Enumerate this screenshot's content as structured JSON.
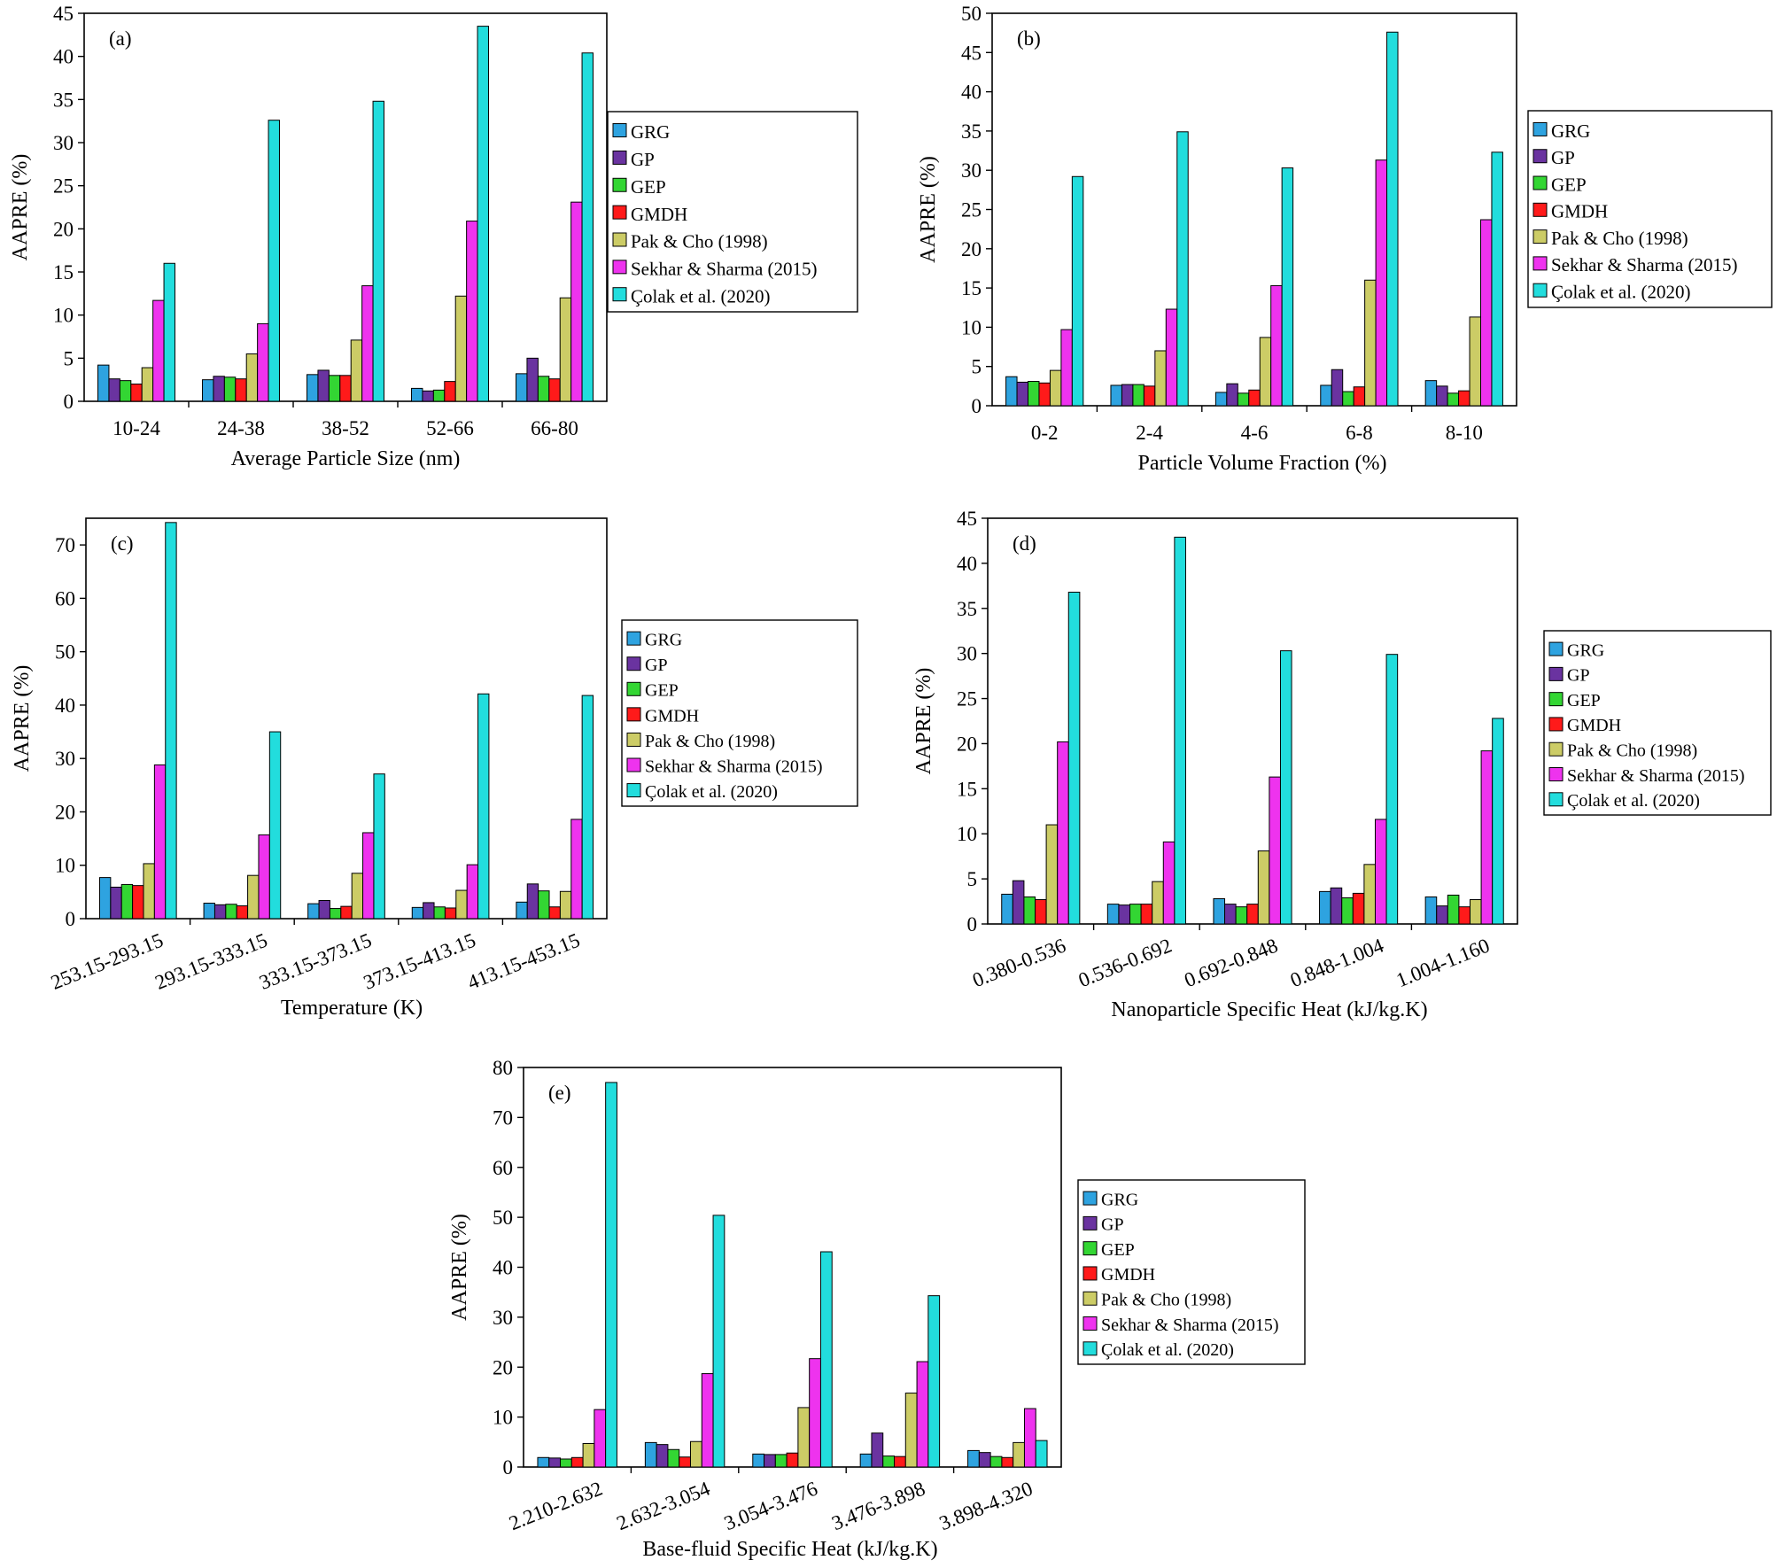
{
  "legend_entries": [
    "GRG",
    "GP",
    "GEP",
    "GMDH",
    "Pak & Cho (1998)",
    "Sekhar & Sharma (2015)",
    "Çolak et al. (2020)"
  ],
  "colors": {
    "series": [
      "#2ea3e0",
      "#6a33a0",
      "#33d633",
      "#ff1a1a",
      "#cccc66",
      "#ee33ee",
      "#22dddd"
    ],
    "axis": "#000000",
    "bar_stroke": "#000000"
  },
  "chart_data": [
    {
      "type": "bar",
      "panel_label": "(a)",
      "title": "",
      "xlabel": "Average Particle Size (nm)",
      "ylabel": "AAPRE (%)",
      "ylim": [
        0,
        45
      ],
      "ytick_step": 5,
      "categories": [
        "10-24",
        "24-38",
        "38-52",
        "52-66",
        "66-80"
      ],
      "series": [
        {
          "name": "GRG",
          "values": [
            4.2,
            2.5,
            3.1,
            1.5,
            3.2
          ]
        },
        {
          "name": "GP",
          "values": [
            2.6,
            2.9,
            3.6,
            1.2,
            5.0
          ]
        },
        {
          "name": "GEP",
          "values": [
            2.4,
            2.8,
            3.0,
            1.3,
            2.9
          ]
        },
        {
          "name": "GMDH",
          "values": [
            2.0,
            2.6,
            3.0,
            2.3,
            2.6
          ]
        },
        {
          "name": "Pak & Cho (1998)",
          "values": [
            3.9,
            5.5,
            7.1,
            12.2,
            12.0
          ]
        },
        {
          "name": "Sekhar & Sharma (2015)",
          "values": [
            11.7,
            9.0,
            13.4,
            20.9,
            23.1
          ]
        },
        {
          "name": "Çolak et al. (2020)",
          "values": [
            16.0,
            32.6,
            34.8,
            43.5,
            40.4
          ]
        }
      ]
    },
    {
      "type": "bar",
      "panel_label": "(b)",
      "title": "",
      "xlabel": "Particle Volume Fraction (%)",
      "ylabel": "AAPRE (%)",
      "ylim": [
        0,
        50
      ],
      "ytick_step": 5,
      "categories": [
        "0-2",
        "2-4",
        "4-6",
        "6-8",
        "8-10"
      ],
      "series": [
        {
          "name": "GRG",
          "values": [
            3.7,
            2.6,
            1.7,
            2.6,
            3.2
          ]
        },
        {
          "name": "GP",
          "values": [
            3.0,
            2.7,
            2.8,
            4.6,
            2.5
          ]
        },
        {
          "name": "GEP",
          "values": [
            3.1,
            2.7,
            1.6,
            1.8,
            1.6
          ]
        },
        {
          "name": "GMDH",
          "values": [
            2.9,
            2.5,
            2.0,
            2.4,
            1.9
          ]
        },
        {
          "name": "Pak & Cho (1998)",
          "values": [
            4.5,
            7.0,
            8.7,
            16.0,
            11.3
          ]
        },
        {
          "name": "Sekhar & Sharma (2015)",
          "values": [
            9.7,
            12.3,
            15.3,
            31.3,
            23.7
          ]
        },
        {
          "name": "Çolak et al. (2020)",
          "values": [
            29.2,
            34.9,
            30.3,
            47.6,
            32.3
          ]
        }
      ]
    },
    {
      "type": "bar",
      "panel_label": "(c)",
      "title": "",
      "xlabel": "Temperature (K)",
      "ylabel": "AAPRE (%)",
      "ylim": [
        0,
        75
      ],
      "ytick_step": 10,
      "categories": [
        "253.15-293.15",
        "293.15-333.15",
        "333.15-373.15",
        "373.15-413.15",
        "413.15-453.15"
      ],
      "series": [
        {
          "name": "GRG",
          "values": [
            7.7,
            2.9,
            2.8,
            2.1,
            3.1
          ]
        },
        {
          "name": "GP",
          "values": [
            5.9,
            2.6,
            3.4,
            3.0,
            6.5
          ]
        },
        {
          "name": "GEP",
          "values": [
            6.4,
            2.7,
            1.9,
            2.2,
            5.2
          ]
        },
        {
          "name": "GMDH",
          "values": [
            6.2,
            2.4,
            2.3,
            2.0,
            2.2
          ]
        },
        {
          "name": "Pak & Cho (1998)",
          "values": [
            10.3,
            8.1,
            8.5,
            5.3,
            5.1
          ]
        },
        {
          "name": "Sekhar & Sharma (2015)",
          "values": [
            28.8,
            15.7,
            16.1,
            10.1,
            18.6
          ]
        },
        {
          "name": "Çolak et al. (2020)",
          "values": [
            74.2,
            35.0,
            27.1,
            42.1,
            41.8
          ]
        }
      ]
    },
    {
      "type": "bar",
      "panel_label": "(d)",
      "title": "",
      "xlabel": "Nanoparticle Specific Heat (kJ/kg.K)",
      "ylabel": "AAPRE (%)",
      "ylim": [
        0,
        45
      ],
      "ytick_step": 5,
      "categories": [
        "0.380-0.536",
        "0.536-0.692",
        "0.692-0.848",
        "0.848-1.004",
        "1.004-1.160"
      ],
      "series": [
        {
          "name": "GRG",
          "values": [
            3.3,
            2.2,
            2.8,
            3.6,
            3.0
          ]
        },
        {
          "name": "GP",
          "values": [
            4.8,
            2.1,
            2.2,
            4.0,
            2.0
          ]
        },
        {
          "name": "GEP",
          "values": [
            3.0,
            2.2,
            1.9,
            2.9,
            3.2
          ]
        },
        {
          "name": "GMDH",
          "values": [
            2.7,
            2.2,
            2.2,
            3.4,
            1.9
          ]
        },
        {
          "name": "Pak & Cho (1998)",
          "values": [
            11.0,
            4.7,
            8.1,
            6.6,
            2.7
          ]
        },
        {
          "name": "Sekhar & Sharma (2015)",
          "values": [
            20.2,
            9.1,
            16.3,
            11.6,
            19.2
          ]
        },
        {
          "name": "Çolak et al. (2020)",
          "values": [
            36.8,
            42.9,
            30.3,
            29.9,
            22.8
          ]
        }
      ]
    },
    {
      "type": "bar",
      "panel_label": "(e)",
      "title": "",
      "xlabel": "Base-fluid Specific Heat (kJ/kg.K)",
      "ylabel": "AAPRE (%)",
      "ylim": [
        0,
        80
      ],
      "ytick_step": 10,
      "categories": [
        "2.210-2.632",
        "2.632-3.054",
        "3.054-3.476",
        "3.476-3.898",
        "3.898-4.320"
      ],
      "series": [
        {
          "name": "GRG",
          "values": [
            1.9,
            4.9,
            2.6,
            2.6,
            3.3
          ]
        },
        {
          "name": "GP",
          "values": [
            1.8,
            4.5,
            2.5,
            6.8,
            2.9
          ]
        },
        {
          "name": "GEP",
          "values": [
            1.6,
            3.5,
            2.5,
            2.2,
            2.1
          ]
        },
        {
          "name": "GMDH",
          "values": [
            1.9,
            2.0,
            2.8,
            2.1,
            1.9
          ]
        },
        {
          "name": "Pak & Cho (1998)",
          "values": [
            4.7,
            5.1,
            11.9,
            14.8,
            4.9
          ]
        },
        {
          "name": "Sekhar & Sharma (2015)",
          "values": [
            11.5,
            18.7,
            21.7,
            21.1,
            11.7
          ]
        },
        {
          "name": "Çolak et al. (2020)",
          "values": [
            77.0,
            50.4,
            43.1,
            34.3,
            5.3
          ]
        }
      ]
    }
  ]
}
